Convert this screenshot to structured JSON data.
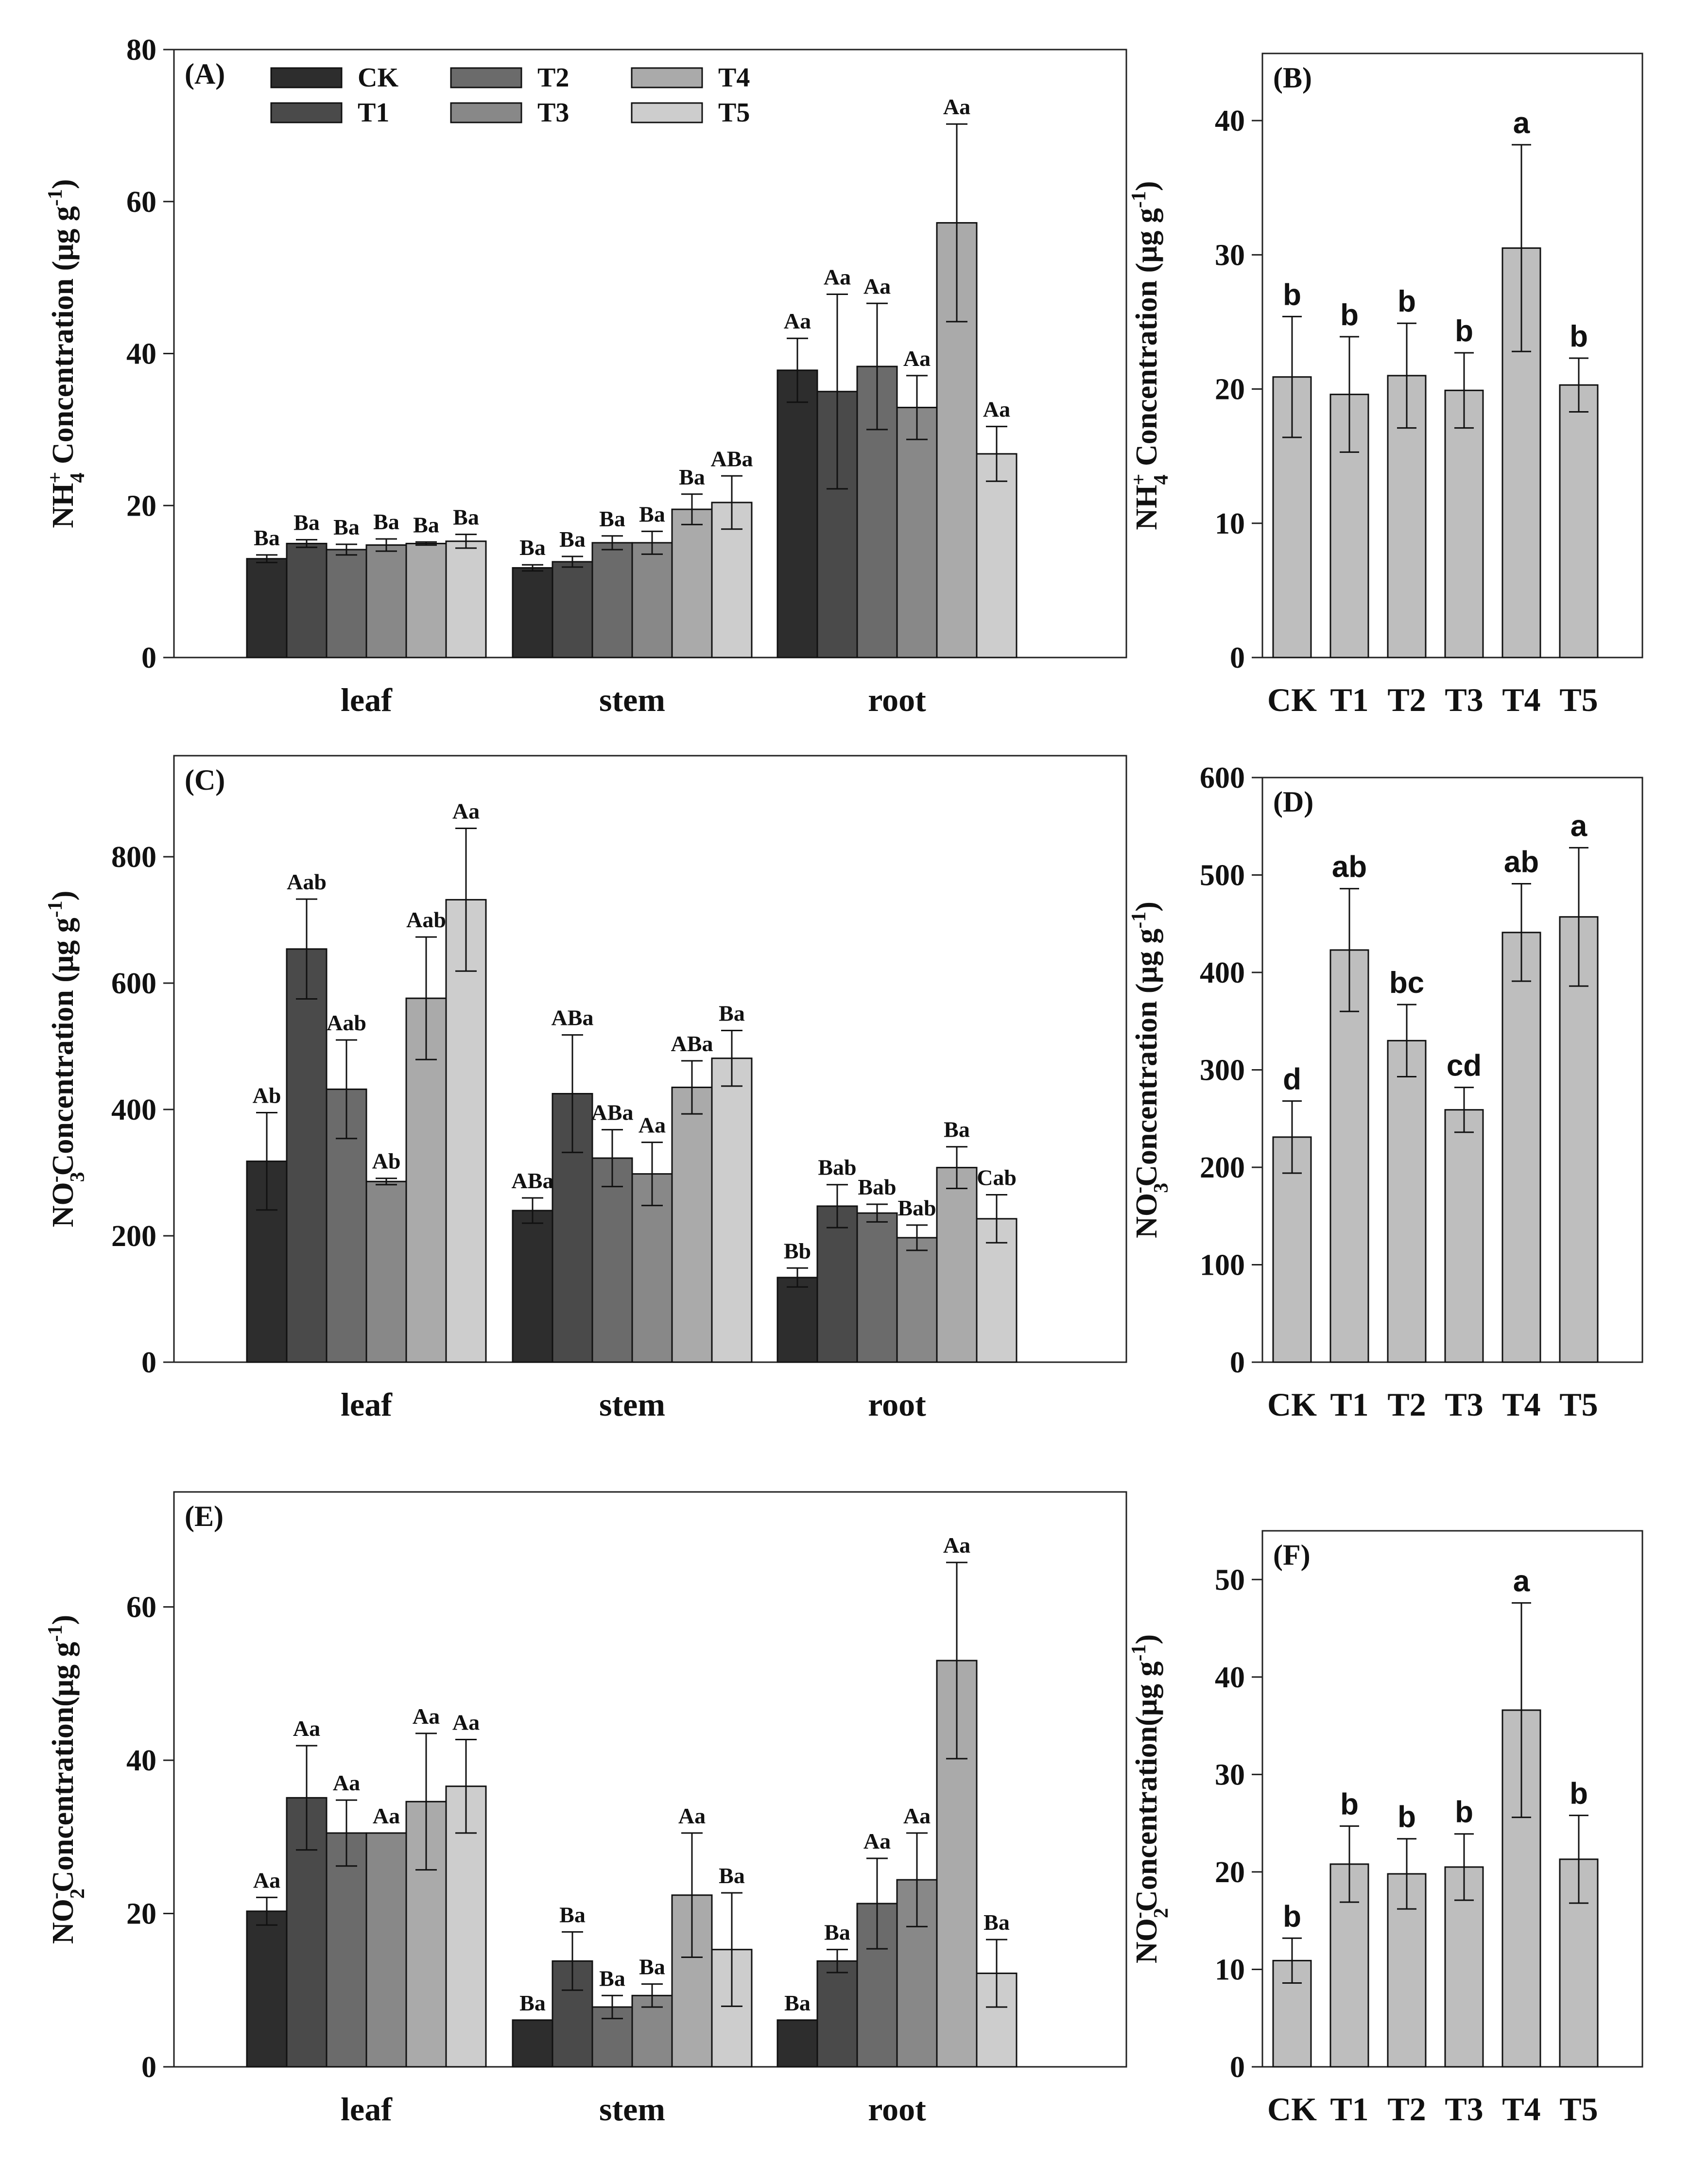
{
  "chart_data": [
    {
      "panel": "(A)",
      "type": "bar",
      "ylabel_main": "NH",
      "ylabel_sub": "4",
      "ylabel_sup": "+",
      "ylabel_rest": " Concentration (μg g",
      "ylabel_unit_sup": "-1",
      "ylabel_close": ")",
      "ylim": [
        0,
        80
      ],
      "yticks": [
        0,
        20,
        40,
        60,
        80
      ],
      "categories": [
        "leaf",
        "stem",
        "root"
      ],
      "legend": {
        "placement": "top-left",
        "entries": [
          "CK",
          "T1",
          "T2",
          "T3",
          "T4",
          "T5"
        ]
      },
      "series": [
        {
          "name": "CK",
          "color": "#2d2d2d",
          "values": [
            13.0,
            11.8,
            37.8
          ],
          "errors": [
            0.5,
            0.4,
            4.2
          ],
          "labels": [
            "Ba",
            "Ba",
            "Aa"
          ]
        },
        {
          "name": "T1",
          "color": "#4a4a4a",
          "values": [
            15.0,
            12.6,
            35.0
          ],
          "errors": [
            0.5,
            0.7,
            12.8
          ],
          "labels": [
            "Ba",
            "Ba",
            "Aa"
          ]
        },
        {
          "name": "T2",
          "color": "#6b6b6b",
          "values": [
            14.2,
            15.1,
            38.3
          ],
          "errors": [
            0.7,
            0.9,
            8.3
          ],
          "labels": [
            "Ba",
            "Ba",
            "Aa"
          ]
        },
        {
          "name": "T3",
          "color": "#888888",
          "values": [
            14.8,
            15.1,
            32.9
          ],
          "errors": [
            0.8,
            1.5,
            4.2
          ],
          "labels": [
            "Ba",
            "Ba",
            "Aa"
          ]
        },
        {
          "name": "T4",
          "color": "#aaaaaa",
          "values": [
            15.0,
            19.5,
            57.2
          ],
          "errors": [
            0.2,
            2.0,
            13.0
          ],
          "labels": [
            "Ba",
            "Ba",
            "Aa"
          ]
        },
        {
          "name": "T5",
          "color": "#cdcdcd",
          "values": [
            15.3,
            20.4,
            26.8
          ],
          "errors": [
            0.9,
            3.5,
            3.6
          ],
          "labels": [
            "Ba",
            "ABa",
            "Aa"
          ]
        }
      ]
    },
    {
      "panel": "(B)",
      "type": "bar",
      "ylabel_main": "NH",
      "ylabel_sub": "4",
      "ylabel_sup": "+",
      "ylabel_rest": " Concentration (μg g",
      "ylabel_unit_sup": "-1",
      "ylabel_close": ")",
      "ylim": [
        0,
        45
      ],
      "yticks": [
        0,
        10,
        20,
        30,
        40
      ],
      "categories": [
        "CK",
        "T1",
        "T2",
        "T3",
        "T4",
        "T5"
      ],
      "values": [
        20.9,
        19.6,
        21.0,
        19.9,
        30.5,
        20.3
      ],
      "errors": [
        4.5,
        4.3,
        3.9,
        2.8,
        7.7,
        2.0
      ],
      "labels": [
        "b",
        "b",
        "b",
        "b",
        "a",
        "b"
      ],
      "color": "#bebebe"
    },
    {
      "panel": "(C)",
      "type": "bar",
      "ylabel_main": "NO",
      "ylabel_sub": "3",
      "ylabel_sup": "-",
      "ylabel_rest": "Concentration (μg g",
      "ylabel_unit_sup": "-1",
      "ylabel_close": ")",
      "ylim": [
        0,
        960
      ],
      "yticks": [
        0,
        200,
        400,
        600,
        800
      ],
      "categories": [
        "leaf",
        "stem",
        "root"
      ],
      "series": [
        {
          "name": "CK",
          "color": "#2d2d2d",
          "values": [
            318,
            240,
            134
          ],
          "errors": [
            77,
            20,
            15
          ],
          "labels": [
            "Ab",
            "ABa",
            "Bb"
          ]
        },
        {
          "name": "T1",
          "color": "#4a4a4a",
          "values": [
            654,
            425,
            247
          ],
          "errors": [
            79,
            93,
            34
          ],
          "labels": [
            "Aab",
            "ABa",
            "Bab"
          ]
        },
        {
          "name": "T2",
          "color": "#6b6b6b",
          "values": [
            432,
            323,
            236
          ],
          "errors": [
            78,
            45,
            14
          ],
          "labels": [
            "Aab",
            "ABa",
            "Bab"
          ]
        },
        {
          "name": "T3",
          "color": "#888888",
          "values": [
            286,
            298,
            197
          ],
          "errors": [
            5,
            50,
            20
          ],
          "labels": [
            "Ab",
            "Aa",
            "Bab"
          ]
        },
        {
          "name": "T4",
          "color": "#aaaaaa",
          "values": [
            576,
            435,
            308
          ],
          "errors": [
            97,
            42,
            33
          ],
          "labels": [
            "Aab",
            "ABa",
            "Ba"
          ]
        },
        {
          "name": "T5",
          "color": "#cdcdcd",
          "values": [
            732,
            481,
            227
          ],
          "errors": [
            113,
            44,
            38
          ],
          "labels": [
            "Aa",
            "Ba",
            "Cab"
          ]
        }
      ]
    },
    {
      "panel": "(D)",
      "type": "bar",
      "ylabel_main": "NO",
      "ylabel_sub": "3",
      "ylabel_sup": "-",
      "ylabel_rest": "Concentration (μg g",
      "ylabel_unit_sup": "-1",
      "ylabel_close": ")",
      "ylim": [
        0,
        600
      ],
      "yticks": [
        0,
        100,
        200,
        300,
        400,
        500,
        600
      ],
      "categories": [
        "CK",
        "T1",
        "T2",
        "T3",
        "T4",
        "T5"
      ],
      "values": [
        231,
        423,
        330,
        259,
        441,
        457
      ],
      "errors": [
        37,
        63,
        37,
        23,
        50,
        71
      ],
      "labels": [
        "d",
        "ab",
        "bc",
        "cd",
        "ab",
        "a"
      ],
      "color": "#bebebe"
    },
    {
      "panel": "(E)",
      "type": "bar",
      "ylabel_main": "NO",
      "ylabel_sub": "2",
      "ylabel_sup": "-",
      "ylabel_rest": "Concentration(μg g",
      "ylabel_unit_sup": "-1",
      "ylabel_close": ")",
      "ylim": [
        0,
        75
      ],
      "yticks": [
        0,
        20,
        40,
        60
      ],
      "categories": [
        "leaf",
        "stem",
        "root"
      ],
      "series": [
        {
          "name": "CK",
          "color": "#2d2d2d",
          "values": [
            20.3,
            6.1,
            6.1
          ],
          "errors": [
            1.8,
            0,
            0
          ],
          "labels": [
            "Aa",
            "Ba",
            "Ba"
          ]
        },
        {
          "name": "T1",
          "color": "#4a4a4a",
          "values": [
            35.1,
            13.8,
            13.8
          ],
          "errors": [
            6.8,
            3.8,
            1.5
          ],
          "labels": [
            "Aa",
            "Ba",
            "Ba"
          ]
        },
        {
          "name": "T2",
          "color": "#6b6b6b",
          "values": [
            30.5,
            7.8,
            21.3
          ],
          "errors": [
            4.3,
            1.5,
            5.9
          ],
          "labels": [
            "Aa",
            "Ba",
            "Aa"
          ]
        },
        {
          "name": "T3",
          "color": "#888888",
          "values": [
            30.5,
            9.3,
            24.4
          ],
          "errors": [
            0,
            1.5,
            6.1
          ],
          "labels": [
            "Aa",
            "Ba",
            "Aa"
          ]
        },
        {
          "name": "T4",
          "color": "#aaaaaa",
          "values": [
            34.6,
            22.4,
            53.0
          ],
          "errors": [
            8.9,
            8.1,
            12.8
          ],
          "labels": [
            "Aa",
            "Aa",
            "Aa"
          ]
        },
        {
          "name": "T5",
          "color": "#cdcdcd",
          "values": [
            36.6,
            15.3,
            12.2
          ],
          "errors": [
            6.1,
            7.4,
            4.4
          ],
          "labels": [
            "Aa",
            "Ba",
            "Ba"
          ]
        }
      ]
    },
    {
      "panel": "(F)",
      "type": "bar",
      "ylabel_main": "NO",
      "ylabel_sub": "2",
      "ylabel_sup": "-",
      "ylabel_rest": "Concentration(μg g",
      "ylabel_unit_sup": "-1",
      "ylabel_close": ")",
      "ylim": [
        0,
        55
      ],
      "yticks": [
        0,
        10,
        20,
        30,
        40,
        50
      ],
      "categories": [
        "CK",
        "T1",
        "T2",
        "T3",
        "T4",
        "T5"
      ],
      "values": [
        10.9,
        20.8,
        19.8,
        20.5,
        36.6,
        21.3
      ],
      "errors": [
        2.3,
        3.9,
        3.6,
        3.4,
        11.0,
        4.5
      ],
      "labels": [
        "b",
        "b",
        "b",
        "b",
        "a",
        "b"
      ],
      "color": "#bebebe"
    }
  ]
}
